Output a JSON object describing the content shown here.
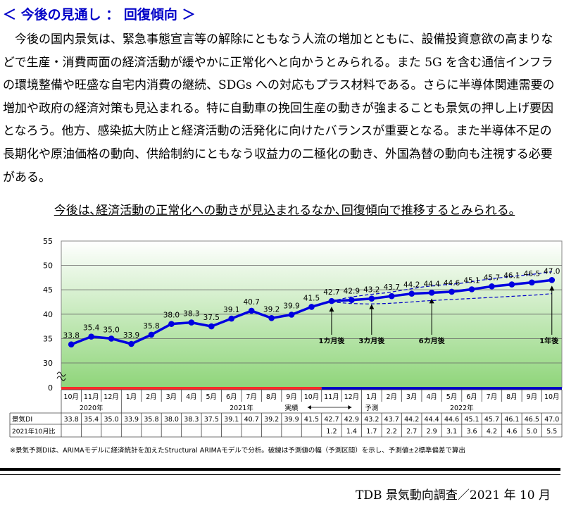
{
  "heading": "＜ 今後の見通し ： 回復傾向 ＞",
  "paragraph": "今後の国内景気は、緊急事態宣言等の解除にともなう人流の増加とともに、設備投資意欲の高まりなどで生産・消費両面の経済活動が緩やかに正常化へと向かうとみられる。また 5G を含む通信インフラの環境整備や旺盛な自宅内消費の継続、SDGs への対応もプラス材料である。さらに半導体関連需要の増加や政府の経済対策も見込まれる。特に自動車の挽回生産の動きが強まることも景気の押し上げ要因となろう。他方、感染拡大防止と経済活動の活発化に向けたバランスが重要となる。また半導体不足の長期化や原油価格の動向、供給制約にともなう収益力の二極化の動き、外国為替の動向も注視する必要がある。",
  "summary": "今後は､経済活動の正常化への動きが見込まれるなか､回復傾向で推移するとみられる｡",
  "chart_data": {
    "type": "line",
    "ylim": [
      0,
      55
    ],
    "y_ticks": [
      0,
      30,
      35,
      40,
      45,
      50,
      55
    ],
    "y_break": true,
    "months": [
      "10月",
      "11月",
      "12月",
      "1月",
      "2月",
      "3月",
      "4月",
      "5月",
      "6月",
      "7月",
      "8月",
      "9月",
      "10月",
      "11月",
      "12月",
      "1月",
      "2月",
      "3月",
      "4月",
      "5月",
      "6月",
      "7月",
      "8月",
      "9月",
      "10月"
    ],
    "year_labels": [
      "2020年",
      "2021年",
      "2022年"
    ],
    "actual_label": "実績",
    "forecast_label": "予測",
    "row_label_di": "景気DI",
    "row_label_diff": "2021年10月比",
    "series": [
      {
        "values": [
          33.8,
          35.4,
          35.0,
          33.9,
          35.8,
          38.0,
          38.3,
          37.5,
          39.1,
          40.7,
          39.2,
          39.9,
          41.5,
          42.7,
          42.9,
          43.2,
          43.7,
          44.2,
          44.4,
          44.6,
          45.1,
          45.7,
          46.1,
          46.5,
          47.0
        ]
      }
    ],
    "table_values": [
      "33.8",
      "35.4",
      "35.0",
      "33.9",
      "35.8",
      "38.0",
      "38.3",
      "37.5",
      "39.1",
      "40.7",
      "39.2",
      "39.9",
      "41.5",
      "42.7",
      "42.9",
      "43.2",
      "43.7",
      "44.2",
      "44.4",
      "44.6",
      "45.1",
      "45.7",
      "46.1",
      "46.5",
      "47.0"
    ],
    "diff_values": [
      "",
      "",
      "",
      "",
      "",
      "",
      "",
      "",
      "",
      "",
      "",
      "",
      "",
      "1.2",
      "1.4",
      "1.7",
      "2.2",
      "2.7",
      "2.9",
      "3.1",
      "3.6",
      "4.2",
      "4.6",
      "5.0",
      "5.5"
    ],
    "forecast_start_index": 13,
    "upper_band": [
      42.7,
      43.5,
      44.0,
      44.4,
      45.0,
      45.6,
      46.0,
      46.3,
      46.9,
      47.4,
      47.8,
      48.2,
      48.7
    ],
    "lower_band": [
      42.5,
      42.2,
      42.1,
      42.2,
      42.4,
      42.7,
      42.9,
      43.1,
      43.3,
      43.5,
      43.7,
      43.9,
      44.2
    ],
    "annotations": [
      {
        "label": "1カ月後",
        "index": 13
      },
      {
        "label": "3カ月後",
        "index": 15
      },
      {
        "label": "6カ月後",
        "index": 18
      },
      {
        "label": "1年後",
        "index": 24
      }
    ],
    "colors": {
      "line": "#0000e0",
      "band": "#0000c8",
      "area_top": "#ffffff",
      "area_bottom": "#8fd57a",
      "base_actual": "#ff2a2a",
      "base_forecast": "#0000c8"
    }
  },
  "footnote": "※景気予測DIは、ARIMAモデルに経済統計を加えたStructural ARIMAモデルで分析。破線は予測値の幅（予測区間）を示し、予測値±2標準偏差で算出",
  "source": "TDB 景気動向調査／2021 年 10 月"
}
